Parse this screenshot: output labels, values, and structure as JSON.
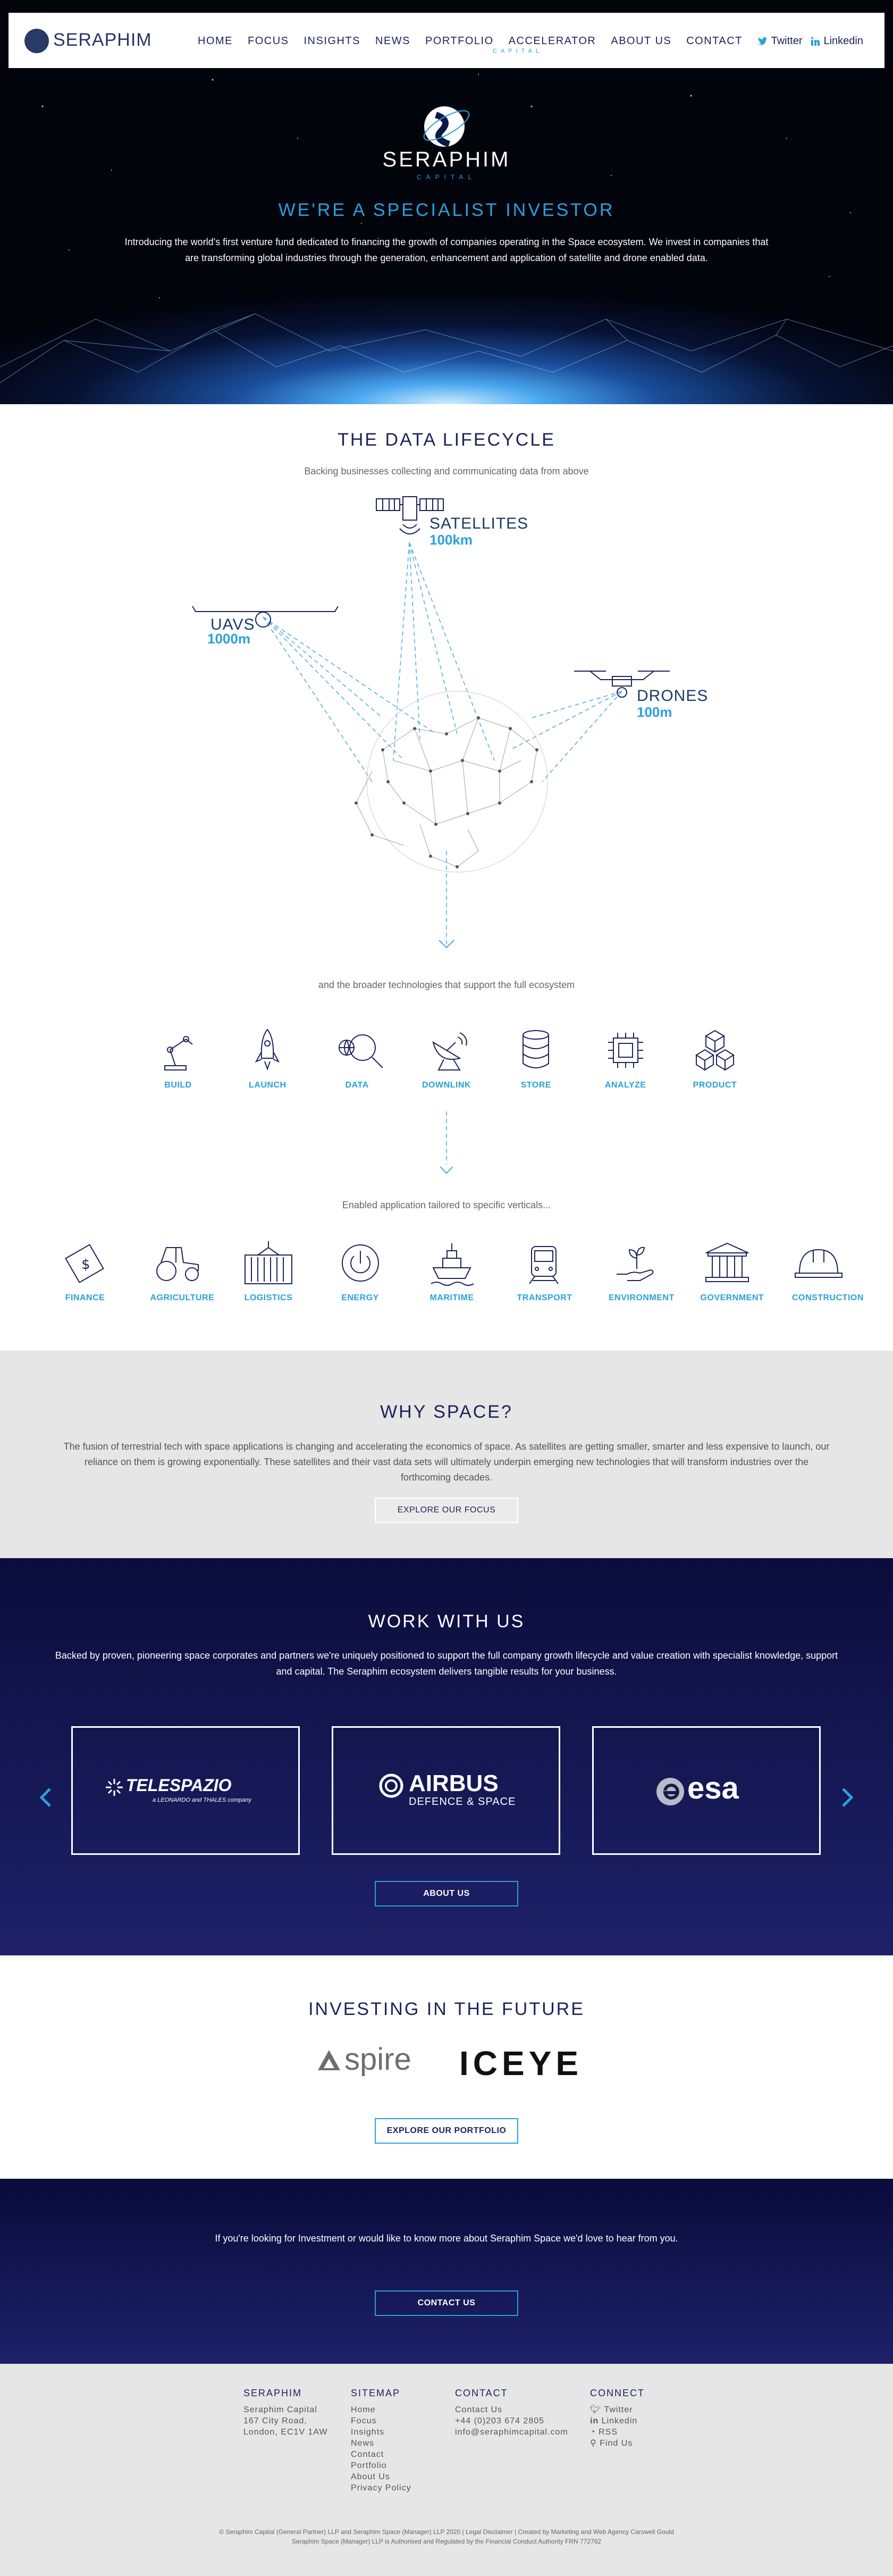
{
  "brand": {
    "name": "SERAPHIM",
    "tagline": "CAPITAL"
  },
  "nav": [
    "HOME",
    "FOCUS",
    "INSIGHTS",
    "NEWS",
    "PORTFOLIO",
    "ACCELERATOR",
    "ABOUT US",
    "CONTACT"
  ],
  "social": {
    "twitter": "Twitter",
    "linkedin": "Linkedin"
  },
  "hero": {
    "title": "WE'RE A SPECIALIST INVESTOR",
    "text": "Introducing the world's first venture fund dedicated to financing the growth of companies operating in the Space ecosystem. We invest in companies that are transforming global industries through the generation, enhancement and application of satellite and drone enabled data."
  },
  "lifecycle": {
    "title": "THE DATA LIFECYCLE",
    "subtitle": "Backing businesses collecting and communicating data from above",
    "satellites": {
      "label": "SATELLITES",
      "alt": "100km"
    },
    "uavs": {
      "label": "UAVS",
      "alt": "1000m"
    },
    "drones": {
      "label": "DRONES",
      "alt": "100m"
    },
    "tech_intro": "and the broader technologies that support the full ecosystem",
    "tech": [
      {
        "label": "BUILD",
        "icon": "robot-arm-icon"
      },
      {
        "label": "LAUNCH",
        "icon": "rocket-icon"
      },
      {
        "label": "DATA",
        "icon": "magnifier-globe-icon"
      },
      {
        "label": "DOWNLINK",
        "icon": "satellite-dish-icon"
      },
      {
        "label": "STORE",
        "icon": "database-icon"
      },
      {
        "label": "ANALYZE",
        "icon": "chip-icon"
      },
      {
        "label": "PRODUCT",
        "icon": "boxes-icon"
      }
    ],
    "verticals_intro": "Enabled application tailored to specific verticals...",
    "verticals": [
      {
        "label": "FINANCE",
        "icon": "banknote-icon"
      },
      {
        "label": "AGRICULTURE",
        "icon": "tractor-icon"
      },
      {
        "label": "LOGISTICS",
        "icon": "container-icon"
      },
      {
        "label": "ENERGY",
        "icon": "power-icon"
      },
      {
        "label": "MARITIME",
        "icon": "ship-icon"
      },
      {
        "label": "TRANSPORT",
        "icon": "train-icon"
      },
      {
        "label": "ENVIRONMENT",
        "icon": "plant-hand-icon"
      },
      {
        "label": "GOVERNMENT",
        "icon": "government-building-icon"
      },
      {
        "label": "CONSTRUCTION",
        "icon": "hard-hat-icon"
      }
    ]
  },
  "why": {
    "title": "WHY SPACE?",
    "text": "The fusion of terrestrial tech with space applications is changing and accelerating the economics of space. As satellites are getting smaller, smarter and less expensive to launch, our reliance on them is growing exponentially. These satellites and their vast data sets will ultimately underpin emerging new technologies that will transform industries over the forthcoming decades.",
    "button": "EXPLORE OUR FOCUS"
  },
  "work": {
    "title": "WORK WITH US",
    "text": "Backed by proven, pioneering space corporates and partners we're uniquely positioned to support the full company growth lifecycle and value creation with specialist knowledge, support and capital. The Seraphim ecosystem delivers tangible results for your business.",
    "partners": [
      {
        "name": "TELESPAZIO",
        "sub": "a LEONARDO and THALES company"
      },
      {
        "name": "AIRBUS",
        "sub": "DEFENCE & SPACE"
      },
      {
        "name": "esa",
        "sub": ""
      }
    ],
    "button": "ABOUT US"
  },
  "invest": {
    "title": "INVESTING IN THE FUTURE",
    "logos": [
      "spire",
      "ICEYE"
    ],
    "button": "EXPLORE OUR PORTFOLIO"
  },
  "contact": {
    "text": "If you're looking for Investment or would like to know more about Seraphim Space we'd love to hear from you.",
    "button": "CONTACT US"
  },
  "footer": {
    "seraphim": {
      "title": "SERAPHIM",
      "lines": [
        "Seraphim Capital",
        "167 City Road,",
        "London, EC1V 1AW"
      ]
    },
    "sitemap": {
      "title": "SITEMAP",
      "links": [
        "Home",
        "Focus",
        "Insights",
        "News",
        "Contact",
        "Portfolio",
        "About Us",
        "Privacy Policy"
      ]
    },
    "contact": {
      "title": "CONTACT",
      "lines": [
        "Contact Us",
        "+44 (0)203 674 2805",
        "info@seraphimcapital.com"
      ]
    },
    "connect": {
      "title": "CONNECT",
      "links": [
        "Twitter",
        "Linkedin",
        "RSS",
        "Find Us"
      ]
    },
    "copyright": "© Seraphim Capital (General Partner) LLP and Seraphim Space (Manager) LLP 2020 | Legal Disclaimer | Created by Marketing and Web Agency Carswell Gould",
    "regulation": "Seraphim Space (Manager) LLP is Authorised and Regulated by the Financial Conduct Authority FRN 772762"
  }
}
